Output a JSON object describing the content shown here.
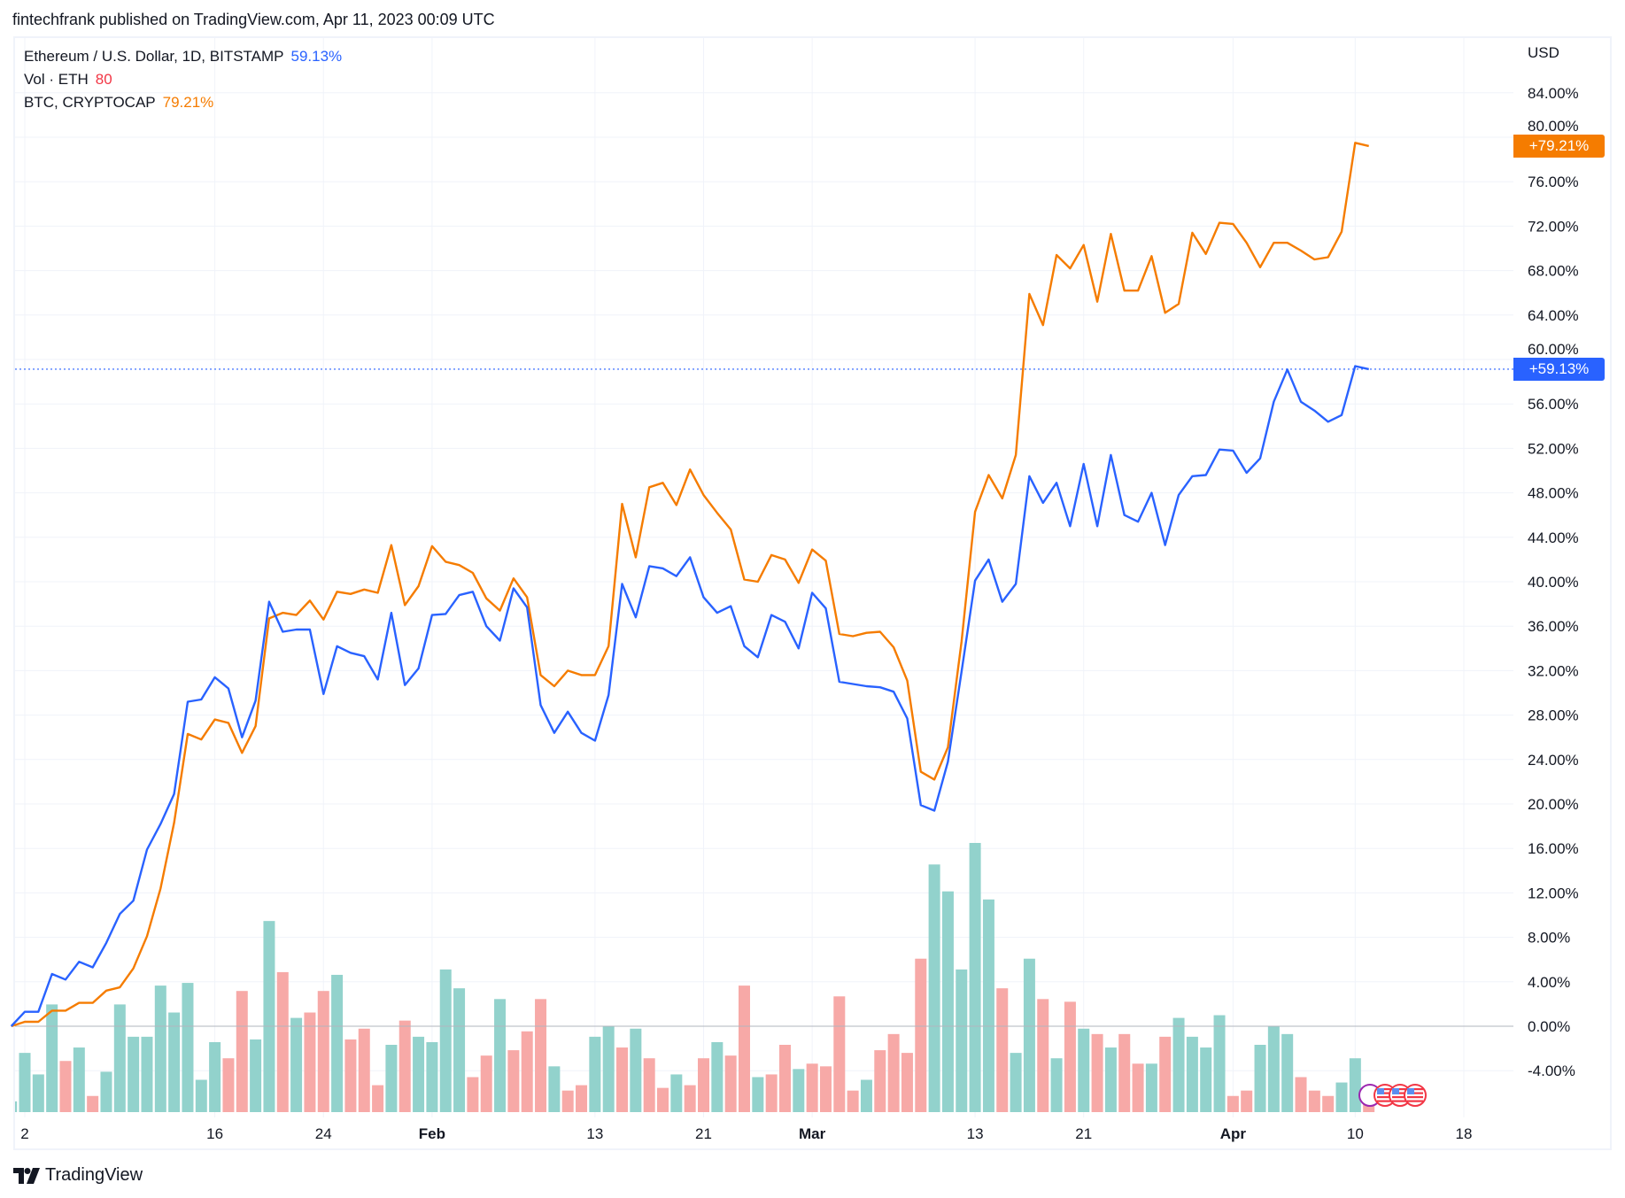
{
  "header": {
    "title": "fintechfrank published on TradingView.com, Apr 11, 2023 00:09 UTC"
  },
  "legend": {
    "eth": {
      "label": "Ethereum / U.S. Dollar, 1D, BITSTAMP",
      "value": "59.13%"
    },
    "vol": {
      "label": "Vol · ETH",
      "value": "80"
    },
    "btc": {
      "label": "BTC, CRYPTOCAP",
      "value": "79.21%"
    }
  },
  "price_axis": {
    "currency": "USD"
  },
  "badges": {
    "btc": "+79.21%",
    "eth": "+59.13%"
  },
  "branding": {
    "name": "TradingView"
  },
  "colors": {
    "eth": "#2962ff",
    "btc": "#f57c00",
    "vol_up": "#92d2cc",
    "vol_down": "#f7a9a7",
    "grid": "#f0f3fa"
  },
  "event_icons": [
    "earnings-icon",
    "us-flag-icon",
    "us-flag-icon",
    "us-flag-icon"
  ],
  "chart_data": {
    "type": "line",
    "title": "",
    "x_start": "2023-01-01",
    "x_end": "2023-04-11",
    "x_tick_labels": [
      {
        "date": "2023-01-02",
        "label": "2",
        "bold": false
      },
      {
        "date": "2023-01-16",
        "label": "16",
        "bold": false
      },
      {
        "date": "2023-01-24",
        "label": "24",
        "bold": false
      },
      {
        "date": "2023-02-01",
        "label": "Feb",
        "bold": true
      },
      {
        "date": "2023-02-13",
        "label": "13",
        "bold": false
      },
      {
        "date": "2023-02-21",
        "label": "21",
        "bold": false
      },
      {
        "date": "2023-03-01",
        "label": "Mar",
        "bold": true
      },
      {
        "date": "2023-03-13",
        "label": "13",
        "bold": false
      },
      {
        "date": "2023-03-21",
        "label": "21",
        "bold": false
      },
      {
        "date": "2023-04-01",
        "label": "Apr",
        "bold": true
      },
      {
        "date": "2023-04-10",
        "label": "10",
        "bold": false
      },
      {
        "date": "2023-04-18",
        "label": "18",
        "bold": false
      }
    ],
    "y_ticks": [
      84,
      80,
      76,
      72,
      68,
      64,
      60,
      56,
      52,
      48,
      44,
      40,
      36,
      32,
      28,
      24,
      20,
      16,
      12,
      8,
      4,
      0,
      -4
    ],
    "y_tick_format": "{v}.00%",
    "ylim": [
      -7,
      88
    ],
    "grid": true,
    "series": [
      {
        "name": "Ethereum / U.S. Dollar, 1D, BITSTAMP",
        "color": "#2962ff",
        "values": [
          0,
          1.3,
          1.3,
          4.7,
          4.2,
          5.8,
          5.3,
          7.5,
          10.1,
          11.3,
          15.9,
          18.2,
          20.9,
          29.2,
          29.4,
          31.4,
          30.4,
          26.0,
          29.3,
          38.2,
          35.5,
          35.7,
          35.7,
          29.9,
          34.2,
          33.6,
          33.3,
          31.2,
          37.2,
          30.7,
          32.2,
          37.0,
          37.1,
          38.8,
          39.1,
          36.0,
          34.7,
          39.4,
          37.7,
          28.9,
          26.4,
          28.3,
          26.4,
          25.7,
          29.8,
          39.8,
          36.8,
          41.4,
          41.2,
          40.5,
          42.2,
          38.6,
          37.2,
          37.8,
          34.2,
          33.2,
          37.0,
          36.4,
          34.0,
          39.0,
          37.6,
          31.0,
          30.8,
          30.6,
          30.5,
          30.1,
          27.7,
          19.9,
          19.4,
          23.8,
          31.9,
          40.1,
          42.0,
          38.2,
          39.8,
          49.5,
          47.1,
          48.9,
          45.0,
          50.6,
          45.0,
          51.4,
          46.0,
          45.4,
          48.0,
          43.3,
          47.8,
          49.5,
          49.6,
          51.9,
          51.8,
          49.8,
          51.1,
          56.2,
          59.1,
          56.2,
          55.4,
          54.4,
          55.0,
          59.4,
          59.13
        ]
      },
      {
        "name": "BTC, CRYPTOCAP",
        "color": "#f57c00",
        "values": [
          0,
          0.4,
          0.4,
          1.4,
          1.4,
          2.1,
          2.1,
          3.2,
          3.5,
          5.2,
          8.1,
          12.4,
          18.3,
          26.3,
          25.8,
          27.6,
          27.3,
          24.6,
          27.0,
          36.7,
          37.2,
          37.0,
          38.3,
          36.6,
          39.1,
          38.9,
          39.3,
          39.0,
          43.3,
          37.9,
          39.6,
          43.2,
          41.8,
          41.5,
          40.8,
          38.5,
          37.4,
          40.3,
          38.6,
          31.6,
          30.6,
          32.0,
          31.6,
          31.6,
          34.2,
          47.0,
          42.2,
          48.5,
          48.9,
          46.9,
          50.1,
          47.8,
          46.2,
          44.7,
          40.2,
          40.0,
          42.4,
          42.0,
          39.9,
          42.9,
          41.9,
          35.3,
          35.1,
          35.4,
          35.5,
          34.1,
          31.1,
          22.9,
          22.2,
          25.1,
          34.6,
          46.3,
          49.6,
          47.5,
          51.4,
          65.9,
          63.1,
          69.4,
          68.2,
          70.3,
          65.2,
          71.3,
          66.2,
          66.2,
          69.3,
          64.2,
          65.0,
          71.4,
          69.5,
          72.3,
          72.2,
          70.5,
          68.3,
          70.5,
          70.5,
          69.8,
          69.0,
          69.2,
          71.5,
          79.5,
          79.21
        ]
      }
    ],
    "volume": {
      "name": "Vol · ETH",
      "scale": "percent of largest bar",
      "values": [
        4,
        22,
        14,
        40,
        19,
        24,
        6,
        15,
        40,
        28,
        28,
        47,
        37,
        48,
        12,
        26,
        20,
        45,
        27,
        71,
        52,
        35,
        37,
        45,
        51,
        27,
        31,
        10,
        25,
        34,
        28,
        26,
        53,
        46,
        13,
        21,
        42,
        23,
        30,
        42,
        17,
        8,
        10,
        28,
        32,
        24,
        31,
        20,
        9,
        14,
        10,
        20,
        26,
        21,
        47,
        13,
        14,
        25,
        16,
        18,
        17,
        43,
        8,
        12,
        23,
        29,
        22,
        57,
        92,
        82,
        53,
        100,
        79,
        46,
        22,
        57,
        42,
        20,
        41,
        31,
        29,
        24,
        29,
        18,
        18,
        28,
        35,
        28,
        24,
        36,
        6,
        8,
        25,
        32,
        29,
        13,
        8,
        6,
        11,
        20,
        3
      ],
      "direction": "ggggrgrgggggggggrrggrgrrgrrrgrg gggrrgrrrgrrggrgrrgrrgrrgrr grrrrgrrrrgggggrgg rgrgrgrrgrgggg rrgggrrrggr"
    }
  }
}
